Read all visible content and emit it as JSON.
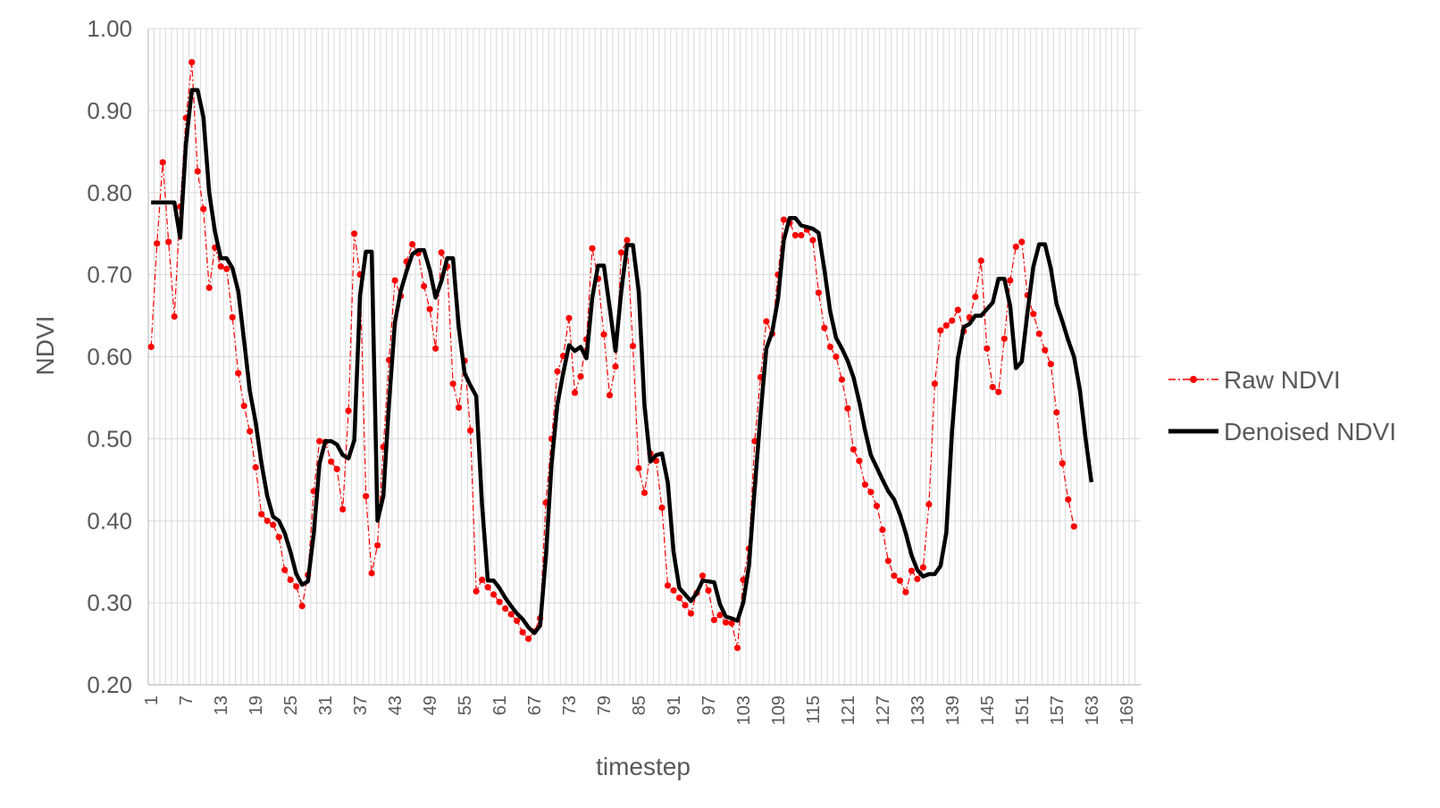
{
  "chart_data": {
    "type": "line",
    "xlabel": "timestep",
    "ylabel": "NDVI",
    "xlim": [
      1,
      171
    ],
    "ylim": [
      0.2,
      1.0
    ],
    "y_ticks": [
      "0.20",
      "0.30",
      "0.40",
      "0.50",
      "0.60",
      "0.70",
      "0.80",
      "0.90",
      "1.00"
    ],
    "x_tick_labels": [
      "1",
      "7",
      "13",
      "19",
      "25",
      "31",
      "37",
      "43",
      "49",
      "55",
      "61",
      "67",
      "73",
      "79",
      "85",
      "91",
      "97",
      "103",
      "109",
      "115",
      "121",
      "127",
      "133",
      "139",
      "145",
      "151",
      "157",
      "163",
      "169"
    ],
    "grid": true,
    "legend_position": "right",
    "series": [
      {
        "name": "Raw NDVI",
        "color": "#ff0000",
        "style": "dash-dot-markers",
        "values": [
          0.612,
          0.738,
          0.837,
          0.74,
          0.649,
          0.783,
          0.891,
          0.959,
          0.826,
          0.78,
          0.684,
          0.733,
          0.71,
          0.707,
          0.648,
          0.58,
          0.54,
          0.509,
          0.465,
          0.408,
          0.4,
          0.395,
          0.38,
          0.34,
          0.328,
          0.32,
          0.296,
          0.334,
          0.436,
          0.497,
          0.496,
          0.472,
          0.463,
          0.414,
          0.534,
          0.75,
          0.7,
          0.43,
          0.336,
          0.37,
          0.49,
          0.596,
          0.693,
          0.674,
          0.716,
          0.737,
          0.726,
          0.686,
          0.658,
          0.61,
          0.727,
          0.71,
          0.567,
          0.538,
          0.595,
          0.51,
          0.314,
          0.328,
          0.319,
          0.31,
          0.301,
          0.293,
          0.286,
          0.278,
          0.264,
          0.256,
          0.265,
          0.281,
          0.422,
          0.5,
          0.582,
          0.601,
          0.647,
          0.556,
          0.576,
          0.621,
          0.732,
          0.695,
          0.627,
          0.553,
          0.588,
          0.727,
          0.742,
          0.613,
          0.464,
          0.434,
          0.482,
          0.473,
          0.416,
          0.321,
          0.315,
          0.306,
          0.297,
          0.287,
          0.312,
          0.333,
          0.315,
          0.279,
          0.285,
          0.276,
          0.275,
          0.245,
          0.328,
          0.366,
          0.497,
          0.575,
          0.643,
          0.628,
          0.7,
          0.767,
          0.763,
          0.748,
          0.748,
          0.755,
          0.742,
          0.678,
          0.635,
          0.612,
          0.6,
          0.572,
          0.537,
          0.487,
          0.473,
          0.444,
          0.435,
          0.418,
          0.389,
          0.351,
          0.333,
          0.327,
          0.313,
          0.339,
          0.329,
          0.343,
          0.42,
          0.567,
          0.632,
          0.638,
          0.644,
          0.657,
          0.631,
          0.648,
          0.673,
          0.717,
          0.61,
          0.563,
          0.557,
          0.622,
          0.693,
          0.734,
          0.74,
          0.675,
          0.652,
          0.628,
          0.608,
          0.591,
          0.532,
          0.47,
          0.426,
          0.393
        ]
      },
      {
        "name": "Denoised NDVI",
        "color": "#000000",
        "style": "solid",
        "values": [
          0.788,
          0.788,
          0.788,
          0.788,
          0.788,
          0.745,
          0.86,
          0.925,
          0.925,
          0.892,
          0.8,
          0.752,
          0.72,
          0.72,
          0.708,
          0.68,
          0.62,
          0.558,
          0.52,
          0.47,
          0.43,
          0.405,
          0.4,
          0.385,
          0.362,
          0.335,
          0.322,
          0.326,
          0.384,
          0.47,
          0.497,
          0.497,
          0.493,
          0.48,
          0.476,
          0.498,
          0.675,
          0.728,
          0.728,
          0.4,
          0.43,
          0.545,
          0.642,
          0.68,
          0.704,
          0.725,
          0.73,
          0.73,
          0.706,
          0.672,
          0.692,
          0.72,
          0.72,
          0.635,
          0.58,
          0.565,
          0.552,
          0.42,
          0.327,
          0.327,
          0.318,
          0.306,
          0.296,
          0.287,
          0.28,
          0.27,
          0.263,
          0.272,
          0.355,
          0.47,
          0.542,
          0.58,
          0.614,
          0.607,
          0.612,
          0.598,
          0.672,
          0.711,
          0.711,
          0.66,
          0.607,
          0.68,
          0.736,
          0.736,
          0.68,
          0.54,
          0.472,
          0.48,
          0.482,
          0.447,
          0.362,
          0.318,
          0.31,
          0.302,
          0.312,
          0.327,
          0.326,
          0.325,
          0.298,
          0.283,
          0.281,
          0.278,
          0.3,
          0.345,
          0.44,
          0.53,
          0.61,
          0.63,
          0.67,
          0.742,
          0.769,
          0.769,
          0.76,
          0.758,
          0.756,
          0.751,
          0.706,
          0.655,
          0.623,
          0.61,
          0.595,
          0.575,
          0.545,
          0.51,
          0.48,
          0.465,
          0.45,
          0.436,
          0.426,
          0.408,
          0.385,
          0.358,
          0.34,
          0.332,
          0.335,
          0.335,
          0.345,
          0.385,
          0.51,
          0.598,
          0.636,
          0.64,
          0.65,
          0.65,
          0.658,
          0.666,
          0.695,
          0.695,
          0.662,
          0.586,
          0.594,
          0.655,
          0.71,
          0.737,
          0.737,
          0.708,
          0.664,
          0.643,
          0.62,
          0.6,
          0.56,
          0.5,
          0.447
        ]
      }
    ]
  }
}
